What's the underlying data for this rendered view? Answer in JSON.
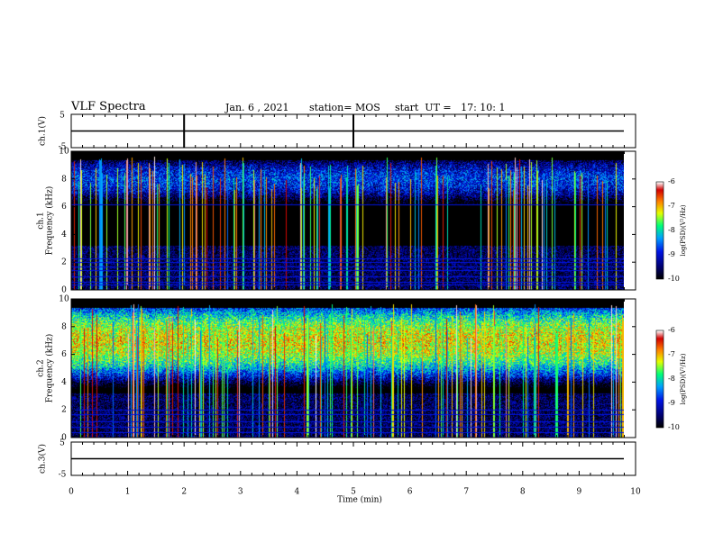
{
  "header": {
    "title": "VLF Spectra",
    "date": "Jan. 6 , 2021",
    "station": "station= MOS",
    "start": "start  UT =   17: 10: 1"
  },
  "chart_data": [
    {
      "type": "line",
      "panel": "ch.1(V)",
      "ylabel": "ch.1(V)",
      "yticks": [
        "5",
        "-5"
      ],
      "ylim": [
        -5,
        5
      ],
      "xlim": [
        0,
        10
      ],
      "level": 0
    },
    {
      "type": "heatmap",
      "panel": "ch.1 spectrogram",
      "ylabel": [
        "ch.1",
        "Frequency (kHz)"
      ],
      "yticks": [
        "0",
        "2",
        "4",
        "6",
        "8",
        "10"
      ],
      "ylim": [
        0,
        10
      ],
      "xlim": [
        0,
        10
      ],
      "colorbar": {
        "label": "log(PSD)(V²/Hz)",
        "ticks": [
          "-6",
          "-7",
          "-8",
          "-9",
          "-10"
        ],
        "range": [
          -10,
          -6
        ]
      },
      "band_center_khz": 8,
      "band_halfwidth_khz": 1.8,
      "band_level": -8.8,
      "horizontal_lines_khz": [
        0.4,
        0.6,
        1.0,
        1.4,
        1.7,
        2.0,
        2.3,
        6.2
      ]
    },
    {
      "type": "heatmap",
      "panel": "ch.2 spectrogram",
      "ylabel": [
        "ch.2",
        "Frequency (kHz)"
      ],
      "yticks": [
        "0",
        "2",
        "4",
        "6",
        "8",
        "10"
      ],
      "ylim": [
        0,
        10
      ],
      "xlim": [
        0,
        10
      ],
      "colorbar": {
        "label": "log(PSD)(V²/Hz)",
        "ticks": [
          "-6",
          "-7",
          "-8",
          "-9",
          "-10"
        ],
        "range": [
          -10,
          -6
        ]
      },
      "band_center_khz": 7,
      "band_halfwidth_khz": 2.4,
      "band_level": -7.2,
      "horizontal_lines_khz": [
        0.4,
        0.8,
        1.2,
        1.7,
        2.0
      ]
    },
    {
      "type": "line",
      "panel": "ch.3(V)",
      "ylabel": "ch.3(V)",
      "yticks": [
        "5",
        "-5"
      ],
      "ylim": [
        -5,
        5
      ],
      "xlim": [
        0,
        10
      ],
      "level": 0
    }
  ],
  "xaxis": {
    "label": "Time (min)",
    "ticks": [
      "0",
      "1",
      "2",
      "3",
      "4",
      "5",
      "6",
      "7",
      "8",
      "9",
      "10"
    ]
  }
}
